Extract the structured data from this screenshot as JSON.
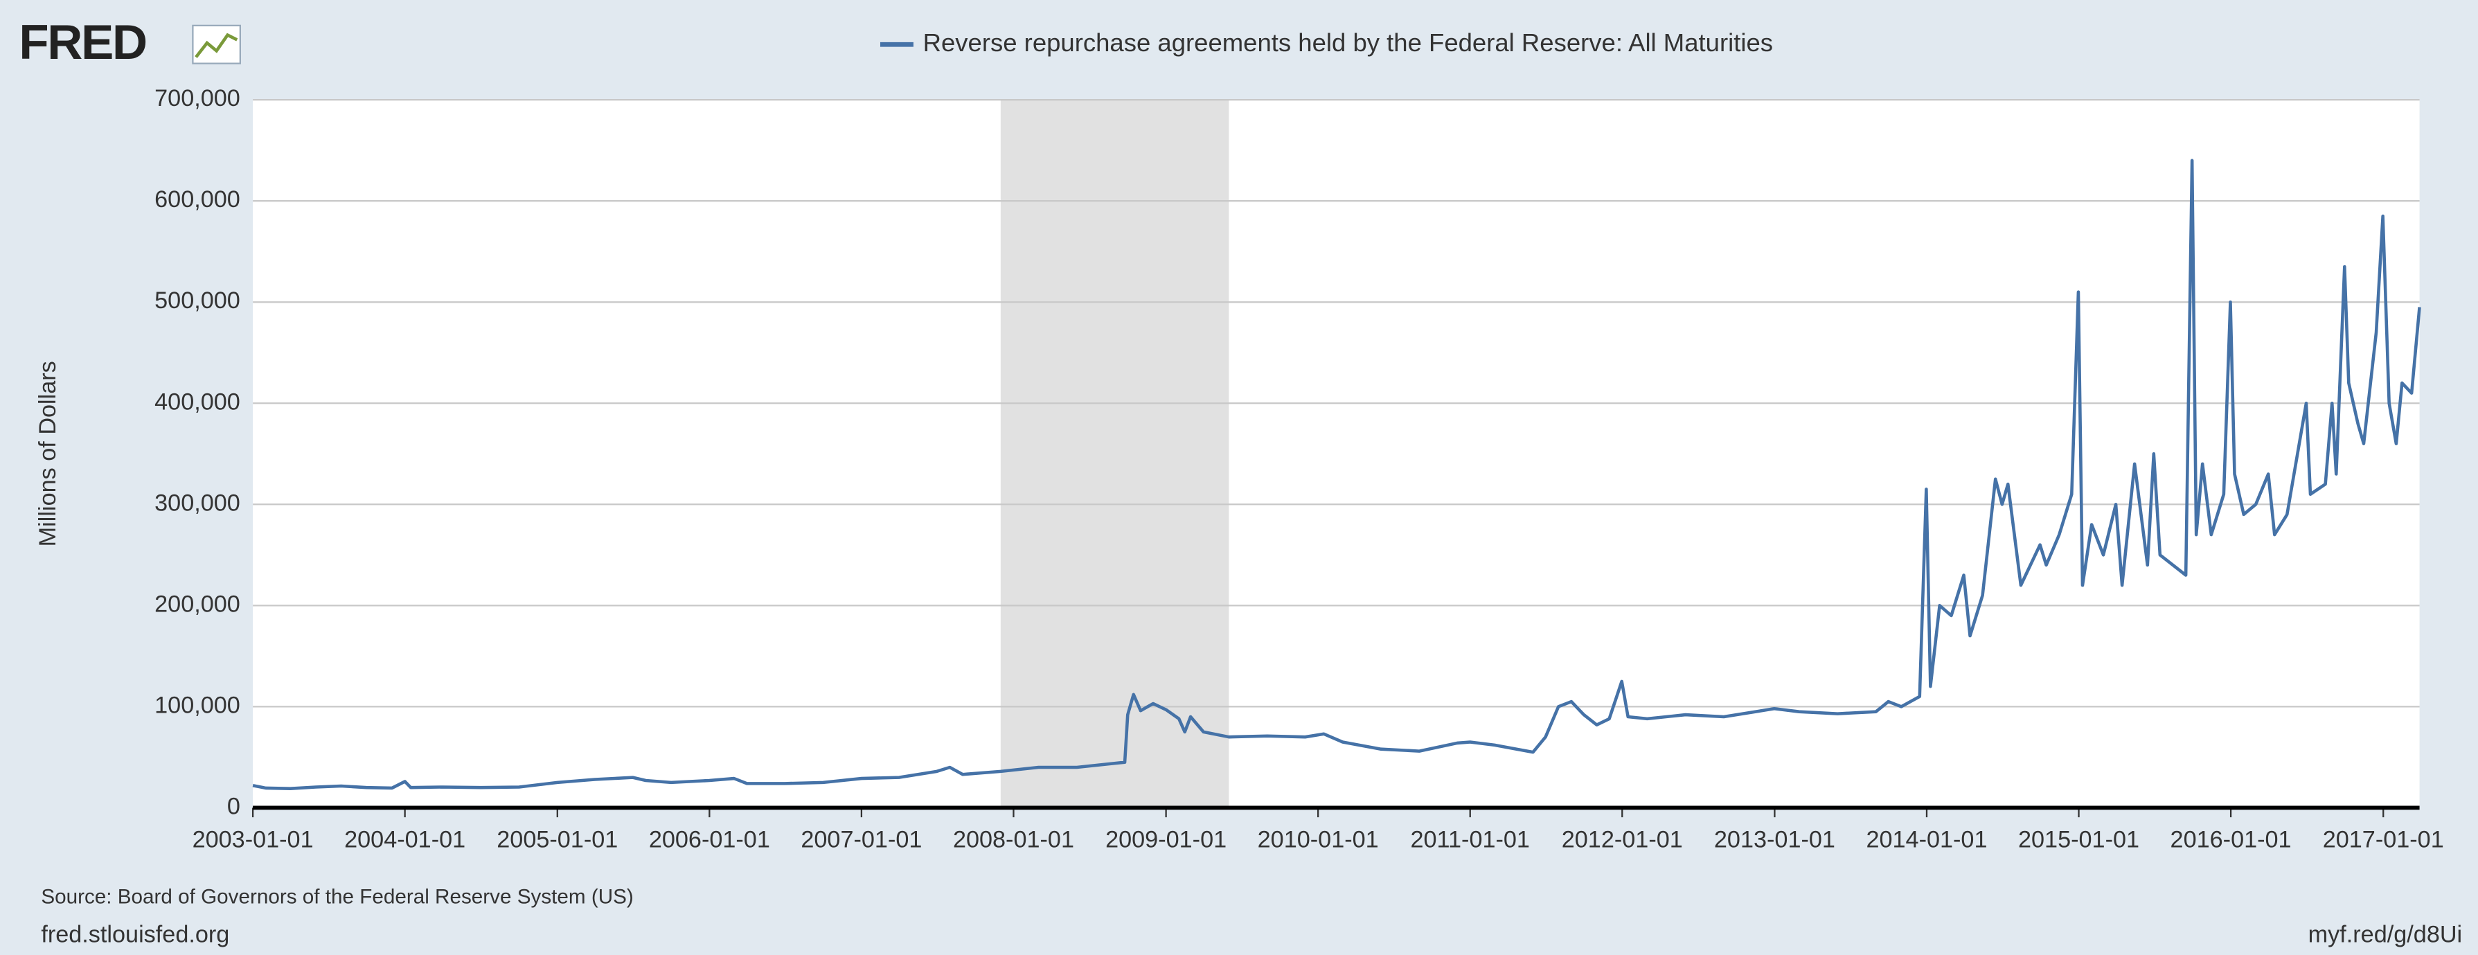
{
  "chart_data": {
    "type": "line",
    "logo": "FRED",
    "title": "Reverse repurchase agreements held by the Federal Reserve: All Maturities",
    "y_label": "Millions of Dollars",
    "source": "Source: Board of Governors of the Federal Reserve System (US)",
    "footer_left": "fred.stlouisfed.org",
    "footer_right": "myf.red/g/d8Ui",
    "xlim": [
      "2003-01-01",
      "2017-03-29"
    ],
    "xticks": [
      "2003-01-01",
      "2004-01-01",
      "2005-01-01",
      "2006-01-01",
      "2007-01-01",
      "2008-01-01",
      "2009-01-01",
      "2010-01-01",
      "2011-01-01",
      "2012-01-01",
      "2013-01-01",
      "2014-01-01",
      "2015-01-01",
      "2016-01-01",
      "2017-01-01"
    ],
    "ylim": [
      0,
      700000
    ],
    "yticks": [
      0,
      {
        "value": 100000,
        "label": "100,000"
      },
      {
        "value": 200000,
        "label": "200,000"
      },
      {
        "value": 300000,
        "label": "300,000"
      },
      {
        "value": 400000,
        "label": "400,000"
      },
      {
        "value": 500000,
        "label": "500,000"
      },
      {
        "value": 600000,
        "label": "600,000"
      },
      {
        "value": 700000,
        "label": "700,000"
      }
    ],
    "grid": true,
    "shading": [
      {
        "start": "2007-12-01",
        "end": "2009-06-01",
        "color": "#e1e1e1"
      }
    ],
    "series": [
      {
        "name": "Reverse repurchase agreements held by the Federal Reserve: All Maturities",
        "color": "#4572a7",
        "x": [
          "2003-01-01",
          "2003-02-01",
          "2003-04-01",
          "2003-06-01",
          "2003-08-01",
          "2003-10-01",
          "2003-12-01",
          "2004-01-01",
          "2004-01-15",
          "2004-04-01",
          "2004-07-01",
          "2004-10-01",
          "2005-01-01",
          "2005-04-01",
          "2005-07-01",
          "2005-08-01",
          "2005-10-01",
          "2006-01-01",
          "2006-03-01",
          "2006-04-01",
          "2006-07-01",
          "2006-10-01",
          "2007-01-01",
          "2007-04-01",
          "2007-07-01",
          "2007-08-01",
          "2007-09-01",
          "2007-12-01",
          "2008-03-01",
          "2008-06-01",
          "2008-09-01",
          "2008-09-24",
          "2008-10-01",
          "2008-10-15",
          "2008-11-01",
          "2008-12-01",
          "2009-01-01",
          "2009-02-01",
          "2009-02-15",
          "2009-03-01",
          "2009-04-01",
          "2009-06-01",
          "2009-09-01",
          "2009-12-01",
          "2010-01-15",
          "2010-03-01",
          "2010-06-01",
          "2010-09-01",
          "2010-12-01",
          "2011-01-01",
          "2011-03-01",
          "2011-06-01",
          "2011-07-01",
          "2011-08-01",
          "2011-09-01",
          "2011-10-01",
          "2011-11-01",
          "2011-12-01",
          "2011-12-31",
          "2012-01-15",
          "2012-03-01",
          "2012-06-01",
          "2012-09-01",
          "2012-12-31",
          "2013-03-01",
          "2013-06-01",
          "2013-09-01",
          "2013-10-01",
          "2013-11-01",
          "2013-12-15",
          "2013-12-31",
          "2014-01-10",
          "2014-02-01",
          "2014-03-01",
          "2014-03-31",
          "2014-04-15",
          "2014-05-15",
          "2014-06-15",
          "2014-07-01",
          "2014-07-15",
          "2014-08-15",
          "2014-09-30",
          "2014-10-15",
          "2014-11-15",
          "2014-12-15",
          "2014-12-31",
          "2015-01-10",
          "2015-02-01",
          "2015-03-01",
          "2015-03-31",
          "2015-04-15",
          "2015-05-15",
          "2015-06-15",
          "2015-06-30",
          "2015-07-15",
          "2015-08-15",
          "2015-09-15",
          "2015-09-30",
          "2015-10-10",
          "2015-10-25",
          "2015-11-15",
          "2015-12-15",
          "2015-12-31",
          "2016-01-10",
          "2016-02-01",
          "2016-03-01",
          "2016-03-31",
          "2016-04-15",
          "2016-05-15",
          "2016-06-30",
          "2016-07-10",
          "2016-08-15",
          "2016-08-31",
          "2016-09-10",
          "2016-09-30",
          "2016-10-10",
          "2016-11-01",
          "2016-11-15",
          "2016-12-15",
          "2016-12-31",
          "2017-01-15",
          "2017-02-01",
          "2017-02-15",
          "2017-03-10",
          "2017-03-29"
        ],
        "values": [
          22000,
          19500,
          19000,
          20500,
          21500,
          20000,
          19500,
          26000,
          20000,
          20500,
          20000,
          20500,
          25000,
          28000,
          30000,
          27000,
          25000,
          27000,
          29000,
          24000,
          24000,
          25000,
          29000,
          30000,
          36000,
          40000,
          33000,
          36000,
          40000,
          40000,
          44000,
          45000,
          92000,
          112000,
          96000,
          103000,
          97000,
          88000,
          75000,
          90000,
          75000,
          70000,
          71000,
          70000,
          73000,
          65000,
          58000,
          56000,
          64000,
          65000,
          62000,
          55000,
          70000,
          100000,
          105000,
          92000,
          82000,
          88000,
          125000,
          90000,
          88000,
          92000,
          90000,
          98000,
          95000,
          93000,
          95000,
          105000,
          100000,
          110000,
          315000,
          120000,
          200000,
          190000,
          230000,
          170000,
          210000,
          325000,
          300000,
          320000,
          220000,
          260000,
          240000,
          270000,
          310000,
          510000,
          220000,
          280000,
          250000,
          300000,
          220000,
          340000,
          240000,
          350000,
          250000,
          240000,
          230000,
          640000,
          270000,
          340000,
          270000,
          310000,
          500000,
          330000,
          290000,
          300000,
          330000,
          270000,
          290000,
          400000,
          310000,
          320000,
          400000,
          330000,
          535000,
          420000,
          380000,
          360000,
          470000,
          585000,
          400000,
          360000,
          420000,
          410000,
          495000
        ]
      }
    ]
  }
}
